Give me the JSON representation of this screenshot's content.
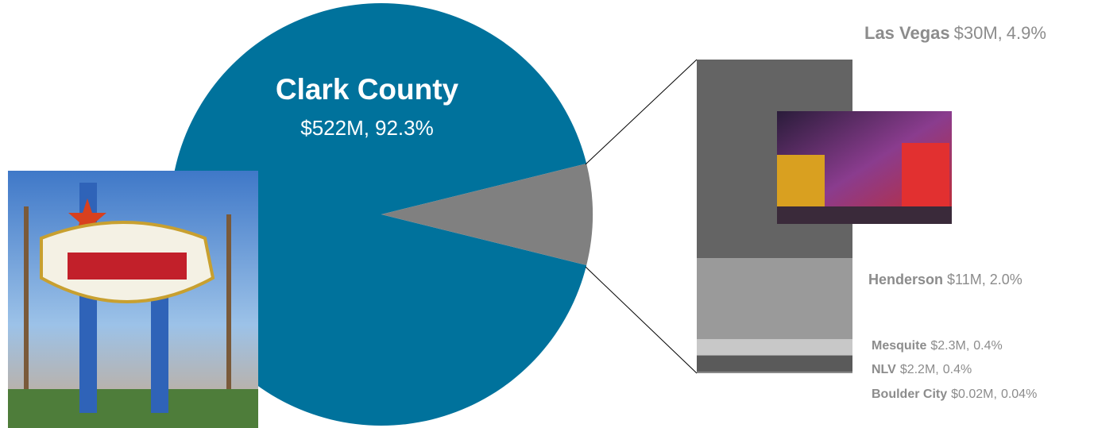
{
  "chart_data": {
    "type": "bar-of-pie",
    "categories": [
      "Clark County",
      "Las Vegas",
      "Henderson",
      "Mesquite",
      "NLV",
      "Boulder City"
    ],
    "values": [
      92.3,
      4.9,
      2.0,
      0.4,
      0.4,
      0.04
    ],
    "value_labels": [
      "92.3%",
      "4.9%",
      "2.0%",
      "0.4%",
      "0.4%",
      "0.04%"
    ],
    "amounts": [
      522,
      30,
      11,
      2.3,
      2.2,
      0.02
    ],
    "amount_labels": [
      "$522M,",
      "$30M,",
      "$11M,",
      "$2.3M,",
      "$2.2M,",
      "$0.02M,"
    ],
    "colors": [
      "#00729c",
      "#646464",
      "#9a9a9a",
      "#c8c8c8",
      "#5a5a5a",
      "#888888"
    ],
    "pie_other_color": "#808080"
  }
}
